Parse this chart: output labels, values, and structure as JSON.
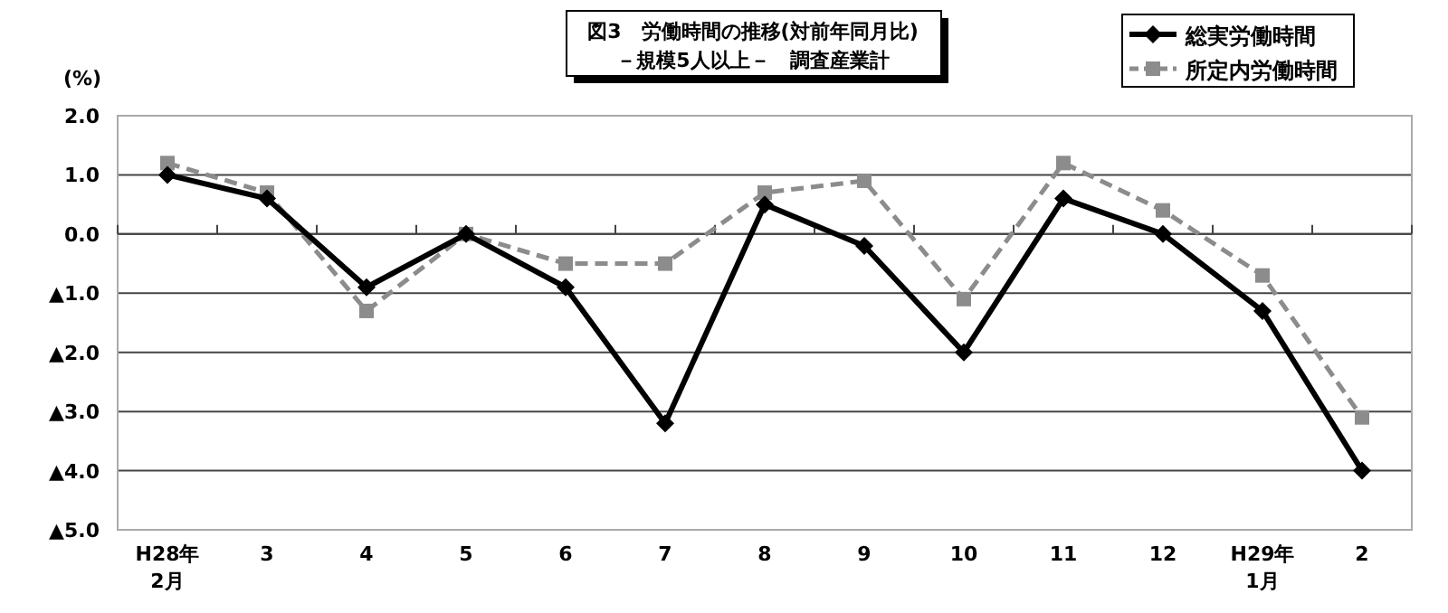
{
  "chart_data": {
    "type": "line",
    "title": "図3　労働時間の推移(対前年同月比)",
    "subtitle": "－規模5人以上－　調査産業計",
    "ylabel": "(%)",
    "categories": [
      "H28年\n2月",
      "3",
      "4",
      "5",
      "6",
      "7",
      "8",
      "9",
      "10",
      "11",
      "12",
      "H29年\n1月",
      "2"
    ],
    "series": [
      {
        "name": "総実労働時間",
        "color": "#000000",
        "marker": "diamond",
        "line_style": "solid",
        "values": [
          1.0,
          0.6,
          -0.9,
          0.0,
          -0.9,
          -3.2,
          0.5,
          -0.2,
          -2.0,
          0.6,
          0.0,
          -1.3,
          -4.0
        ]
      },
      {
        "name": "所定内労働時間",
        "color": "#8c8c8c",
        "marker": "square",
        "line_style": "dashed",
        "values": [
          1.2,
          0.7,
          -1.3,
          0.0,
          -0.5,
          -0.5,
          0.7,
          0.9,
          -1.1,
          1.2,
          0.4,
          -0.7,
          -3.1
        ]
      }
    ],
    "ylim": [
      -5,
      2
    ],
    "yticks": [
      {
        "value": 2,
        "label": "2.0"
      },
      {
        "value": 1,
        "label": "1.0"
      },
      {
        "value": 0,
        "label": "0.0"
      },
      {
        "value": -1,
        "label": "▲1.0"
      },
      {
        "value": -2,
        "label": "▲2.0"
      },
      {
        "value": -3,
        "label": "▲3.0"
      },
      {
        "value": -4,
        "label": "▲4.0"
      },
      {
        "value": -5,
        "label": "▲5.0"
      }
    ],
    "grid": "y",
    "legend": "top right"
  }
}
